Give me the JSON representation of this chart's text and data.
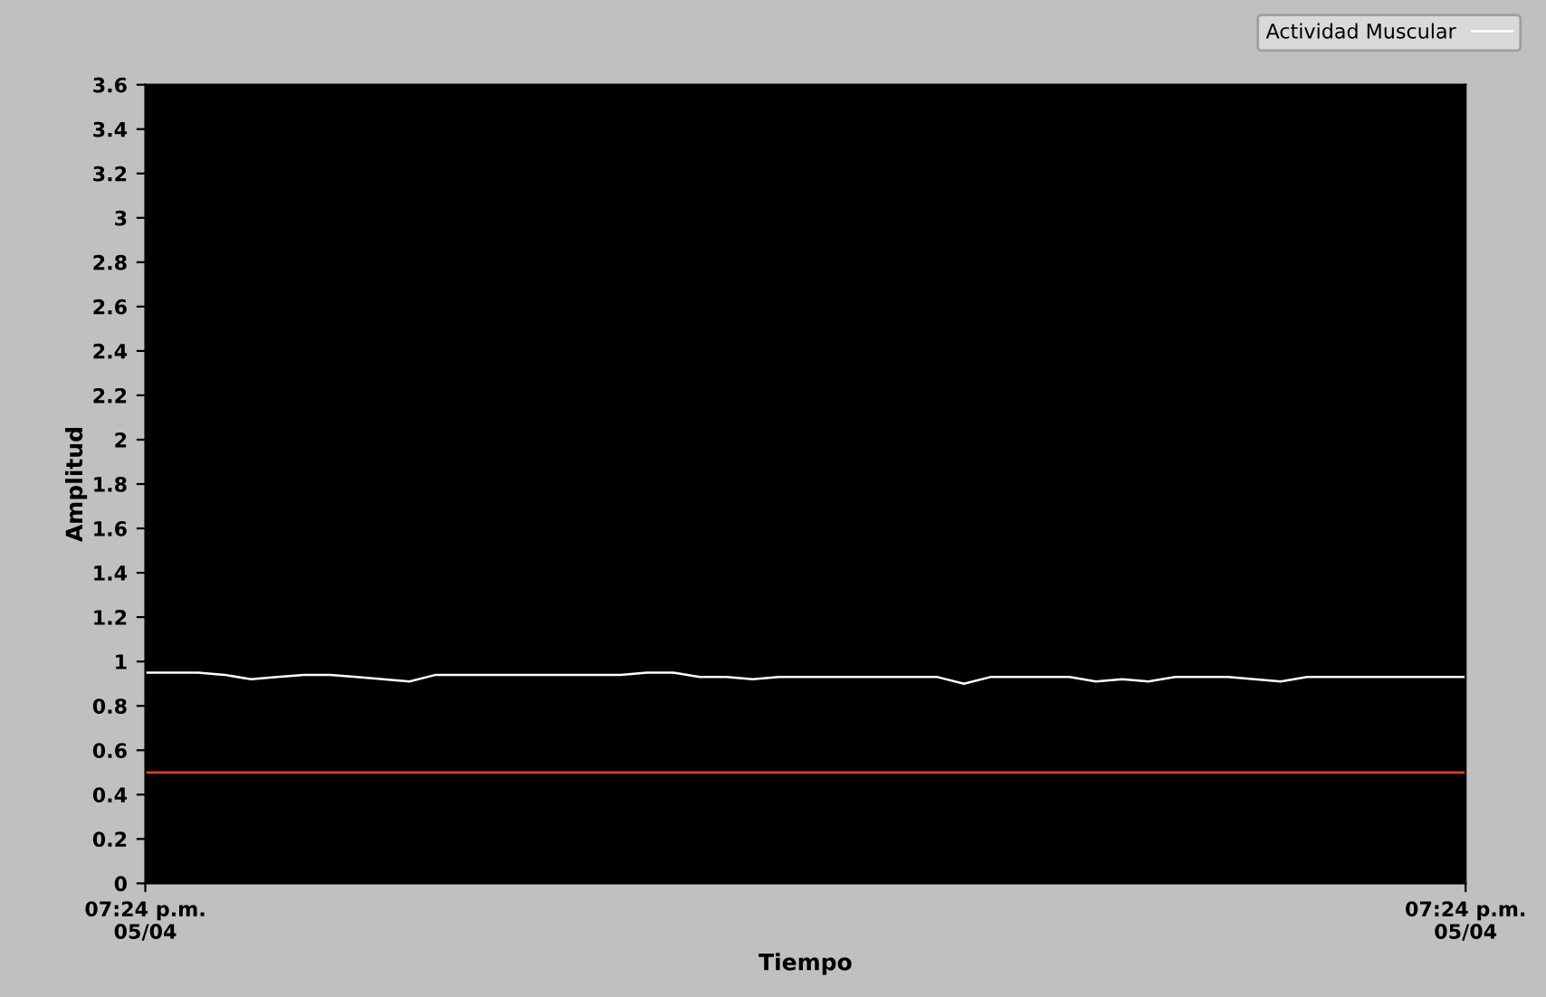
{
  "chart_data": {
    "type": "line",
    "xlabel": "Tiempo",
    "ylabel": "Amplitud",
    "categories": [
      "07:24 p.m.\n05/04",
      null,
      null,
      null,
      null,
      null,
      null,
      null,
      null,
      null,
      null,
      null,
      null,
      null,
      null,
      null,
      null,
      null,
      null,
      null,
      null,
      null,
      null,
      null,
      null,
      null,
      null,
      null,
      null,
      null,
      null,
      null,
      null,
      null,
      null,
      null,
      null,
      null,
      null,
      null,
      null,
      null,
      null,
      null,
      null,
      null,
      null,
      null,
      null,
      null,
      "07:24 p.m.\n05/04"
    ],
    "series": [
      {
        "name": "Actividad Muscular",
        "color": "#ffffff",
        "values": [
          0.95,
          0.95,
          0.95,
          0.94,
          0.92,
          0.93,
          0.94,
          0.94,
          0.93,
          0.92,
          0.91,
          0.94,
          0.94,
          0.94,
          0.94,
          0.94,
          0.94,
          0.94,
          0.94,
          0.95,
          0.95,
          0.93,
          0.93,
          0.92,
          0.93,
          0.93,
          0.93,
          0.93,
          0.93,
          0.93,
          0.93,
          0.9,
          0.93,
          0.93,
          0.93,
          0.93,
          0.91,
          0.92,
          0.91,
          0.93,
          0.93,
          0.93,
          0.92,
          0.91,
          0.93,
          0.93,
          0.93,
          0.93,
          0.93,
          0.93,
          0.93
        ]
      }
    ],
    "ref_lines": [
      {
        "axis": "y",
        "value": 0.5,
        "color": "#e03c31"
      }
    ],
    "ylim": [
      0,
      3.6
    ],
    "yticks": [
      0,
      0.2,
      0.4,
      0.6,
      0.8,
      1,
      1.2,
      1.4,
      1.6,
      1.8,
      2,
      2.2,
      2.4,
      2.6,
      2.8,
      3,
      3.2,
      3.4,
      3.6
    ],
    "grid": false,
    "legend": "top right",
    "line_style": "solid",
    "marker": "none"
  }
}
